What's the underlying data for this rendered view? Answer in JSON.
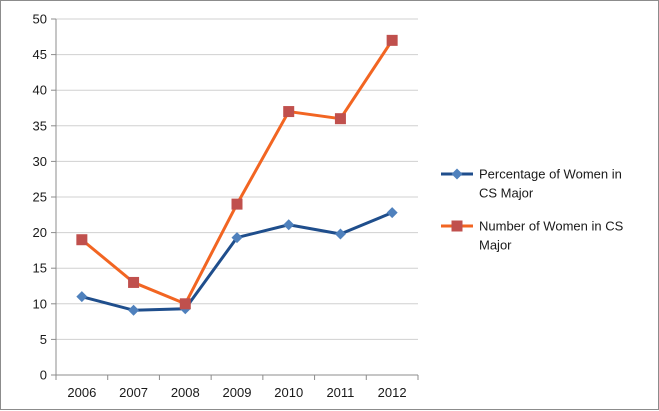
{
  "chart_data": {
    "type": "line",
    "categories": [
      "2006",
      "2007",
      "2008",
      "2009",
      "2010",
      "2011",
      "2012"
    ],
    "series": [
      {
        "name": "Percentage of Women in CS Major",
        "name_lines": [
          "Percentage of Women in",
          "CS Major"
        ],
        "color": "#1f4e8c",
        "marker_color": "#4f81bd",
        "marker": "diamond",
        "values": [
          11,
          9.1,
          9.3,
          19.3,
          21.1,
          19.8,
          22.8
        ]
      },
      {
        "name": "Number of Women in CS Major",
        "name_lines": [
          "Number of Women in CS",
          "Major"
        ],
        "color": "#f26522",
        "marker_color": "#c0504d",
        "marker": "square",
        "values": [
          19,
          13,
          10,
          24,
          37,
          36,
          47
        ]
      }
    ],
    "ylim": [
      0,
      50
    ],
    "yticks": [
      "0",
      "5",
      "10",
      "15",
      "20",
      "25",
      "30",
      "35",
      "40",
      "45",
      "50"
    ],
    "grid": true,
    "legend_position": "right",
    "title": "",
    "xlabel": "",
    "ylabel": ""
  }
}
